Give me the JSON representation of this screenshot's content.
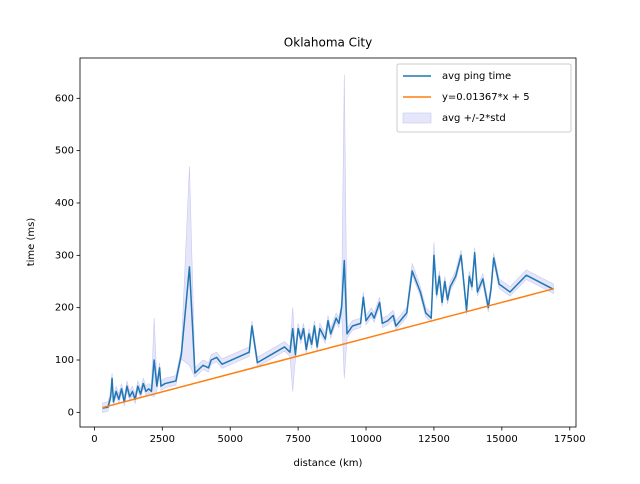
{
  "chart_data": {
    "type": "line",
    "title": "Oklahoma City",
    "xlabel": "distance (km)",
    "ylabel": "time (ms)",
    "x": [
      300,
      500,
      600,
      650,
      700,
      800,
      900,
      1000,
      1100,
      1200,
      1300,
      1400,
      1500,
      1600,
      1700,
      1800,
      1900,
      2000,
      2100,
      2200,
      2300,
      2400,
      2450,
      2600,
      3000,
      3200,
      3500,
      3700,
      4000,
      4200,
      4300,
      4500,
      4700,
      5700,
      5800,
      6000,
      7000,
      7200,
      7300,
      7400,
      7500,
      7600,
      7700,
      7800,
      7900,
      8000,
      8100,
      8200,
      8300,
      8500,
      8600,
      8700,
      8900,
      9000,
      9100,
      9200,
      9300,
      9500,
      9800,
      9900,
      10000,
      10200,
      10300,
      10500,
      10600,
      10800,
      11000,
      11100,
      11500,
      11700,
      12000,
      12200,
      12400,
      12500,
      12600,
      12700,
      12800,
      12900,
      13000,
      13100,
      13300,
      13500,
      13700,
      13800,
      13900,
      14000,
      14100,
      14300,
      14500,
      14600,
      14700,
      14900,
      15300,
      15900,
      16900
    ],
    "series": [
      {
        "name": "avg ping time",
        "color": "#1f77b4",
        "values": [
          8,
          10,
          30,
          65,
          20,
          40,
          25,
          45,
          20,
          50,
          30,
          40,
          25,
          50,
          35,
          55,
          40,
          45,
          40,
          100,
          50,
          85,
          50,
          55,
          60,
          110,
          278,
          75,
          90,
          85,
          100,
          105,
          92,
          115,
          165,
          95,
          125,
          115,
          160,
          110,
          160,
          140,
          160,
          120,
          150,
          130,
          165,
          125,
          160,
          140,
          175,
          150,
          180,
          170,
          200,
          290,
          150,
          165,
          170,
          220,
          175,
          190,
          180,
          210,
          170,
          175,
          185,
          165,
          190,
          270,
          230,
          190,
          180,
          300,
          225,
          260,
          210,
          250,
          215,
          240,
          260,
          300,
          195,
          260,
          240,
          305,
          230,
          255,
          200,
          235,
          295,
          245,
          230,
          262,
          235
        ]
      },
      {
        "name": "y=0.01367*x + 5",
        "color": "#ff7f0e",
        "x": [
          300,
          16900
        ],
        "values": [
          9.1,
          236.0
        ]
      }
    ],
    "band": {
      "name": "avg +/-2*std",
      "color": "#e6e6fb",
      "edge": "#c8c8f0",
      "upper": [
        18,
        20,
        40,
        75,
        30,
        50,
        35,
        55,
        30,
        60,
        40,
        50,
        35,
        60,
        45,
        65,
        50,
        55,
        50,
        180,
        60,
        95,
        60,
        65,
        70,
        120,
        470,
        85,
        100,
        95,
        110,
        115,
        102,
        125,
        175,
        105,
        135,
        125,
        200,
        120,
        170,
        150,
        170,
        130,
        160,
        140,
        175,
        135,
        170,
        150,
        185,
        160,
        190,
        180,
        210,
        645,
        160,
        175,
        180,
        230,
        185,
        200,
        190,
        220,
        180,
        185,
        195,
        175,
        200,
        285,
        240,
        200,
        190,
        325,
        235,
        270,
        220,
        260,
        225,
        250,
        270,
        310,
        205,
        270,
        250,
        315,
        240,
        265,
        210,
        245,
        305,
        255,
        240,
        272,
        245
      ],
      "lower": [
        0,
        2,
        22,
        57,
        12,
        32,
        17,
        37,
        12,
        42,
        22,
        32,
        17,
        42,
        27,
        47,
        32,
        37,
        32,
        30,
        42,
        77,
        42,
        47,
        52,
        102,
        90,
        67,
        82,
        77,
        92,
        97,
        84,
        107,
        157,
        87,
        117,
        107,
        40,
        102,
        152,
        132,
        152,
        112,
        142,
        122,
        157,
        117,
        152,
        132,
        167,
        142,
        172,
        162,
        192,
        65,
        142,
        157,
        162,
        212,
        167,
        182,
        172,
        202,
        162,
        167,
        177,
        157,
        182,
        262,
        222,
        182,
        172,
        292,
        217,
        252,
        202,
        242,
        207,
        232,
        252,
        292,
        187,
        252,
        232,
        297,
        222,
        247,
        192,
        227,
        287,
        237,
        222,
        254,
        227
      ]
    },
    "xlim": [
      -530,
      17730
    ],
    "xticks": [
      0,
      2500,
      5000,
      7500,
      10000,
      12500,
      15000,
      17500
    ],
    "ylim": [
      -28,
      677
    ],
    "yticks": [
      0,
      100,
      200,
      300,
      400,
      500,
      600
    ],
    "legend": "upper right"
  }
}
